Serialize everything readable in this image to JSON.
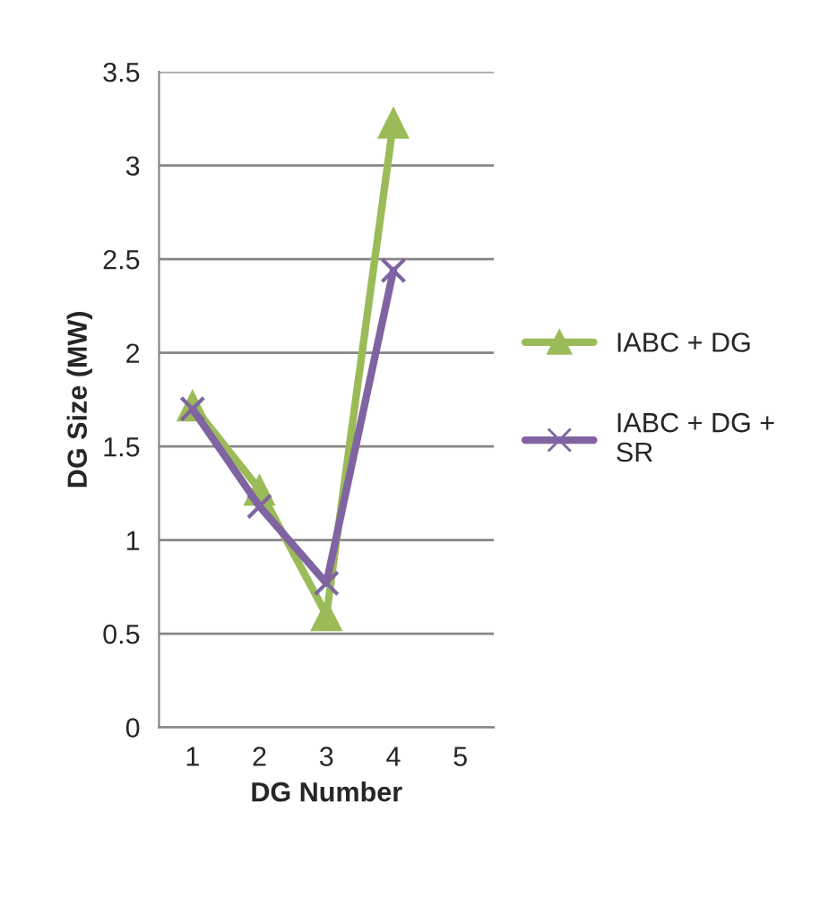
{
  "chart_data": {
    "type": "line",
    "xlabel": "DG Number",
    "ylabel": "DG Size (MW)",
    "categories": [
      "1",
      "2",
      "3",
      "4",
      "5"
    ],
    "series": [
      {
        "name": "IABC + DG",
        "color": "#9bbb59",
        "values": [
          1.72,
          1.27,
          0.6,
          3.23,
          null
        ],
        "marker": "triangle"
      },
      {
        "name": "IABC + DG +\nSR",
        "color": "#8064a2",
        "values": [
          1.7,
          1.18,
          0.77,
          2.44,
          null
        ],
        "marker": "cross"
      }
    ],
    "ylim": [
      0,
      3.5
    ],
    "yticks": [
      0,
      0.5,
      1,
      1.5,
      2,
      2.5,
      3,
      3.5
    ],
    "grid": "y",
    "legend": "right",
    "line_style": "solid"
  }
}
